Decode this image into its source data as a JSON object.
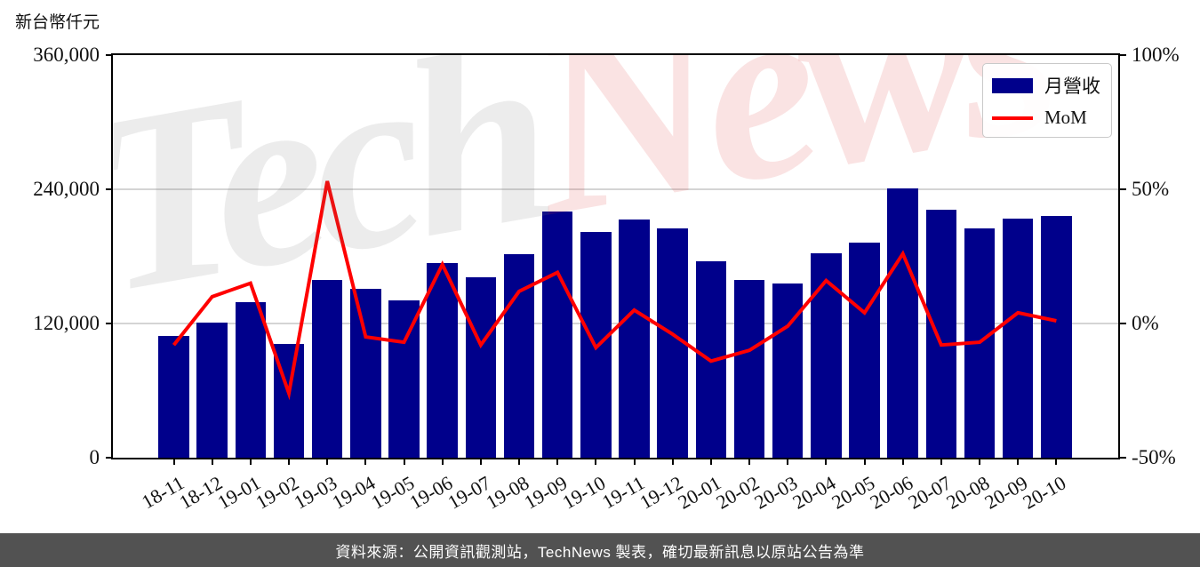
{
  "unit_label": "新台幣仟元",
  "legend": {
    "bar_label": "月營收",
    "line_label": "MoM"
  },
  "watermark": {
    "part1": "Tech",
    "part2": "News"
  },
  "footer": {
    "text": "資料來源：公開資訊觀測站，TechNews 製表，確切最新訊息以原站公告為準"
  },
  "colors": {
    "bar": "#00008B",
    "line": "#FF0000",
    "grid": "#d4d4d4",
    "axis": "#000000",
    "footer_bg": "#525252",
    "watermark_pink": "rgba(220,60,55,0.14)",
    "watermark_gray": "rgba(120,120,120,0.14)"
  },
  "chart_data": {
    "type": "bar",
    "title": "",
    "categories": [
      "18-11",
      "18-12",
      "19-01",
      "19-02",
      "19-03",
      "19-04",
      "19-05",
      "19-06",
      "19-07",
      "19-08",
      "19-09",
      "19-10",
      "19-11",
      "19-12",
      "20-01",
      "20-02",
      "20-03",
      "20-04",
      "20-05",
      "20-06",
      "20-07",
      "20-08",
      "20-09",
      "20-10"
    ],
    "series": [
      {
        "name": "月營收",
        "type": "bar",
        "axis": "left",
        "unit": "新台幣仟元",
        "values": [
          109000,
          121000,
          139000,
          102000,
          159000,
          151000,
          141000,
          174000,
          161000,
          182000,
          220000,
          202000,
          213000,
          205000,
          176000,
          159000,
          156000,
          183000,
          192000,
          241000,
          222000,
          205000,
          214000,
          216000
        ]
      },
      {
        "name": "MoM",
        "type": "line",
        "axis": "right",
        "unit": "%",
        "values": [
          -8,
          10,
          15,
          -26,
          53,
          -5,
          -7,
          22,
          -8,
          12,
          19,
          -9,
          5,
          -4,
          -14,
          -10,
          -1,
          16,
          4,
          26,
          -8,
          -7,
          4,
          1
        ]
      }
    ],
    "left_axis": {
      "label": "新台幣仟元",
      "ticks": [
        "0",
        "120,000",
        "240,000",
        "360,000"
      ],
      "range": [
        0,
        360000
      ]
    },
    "right_axis": {
      "ticks": [
        "-50%",
        "0%",
        "50%",
        "100%"
      ],
      "range": [
        -50,
        100
      ]
    },
    "grid": "horizontal",
    "legend_position": "top-right"
  }
}
